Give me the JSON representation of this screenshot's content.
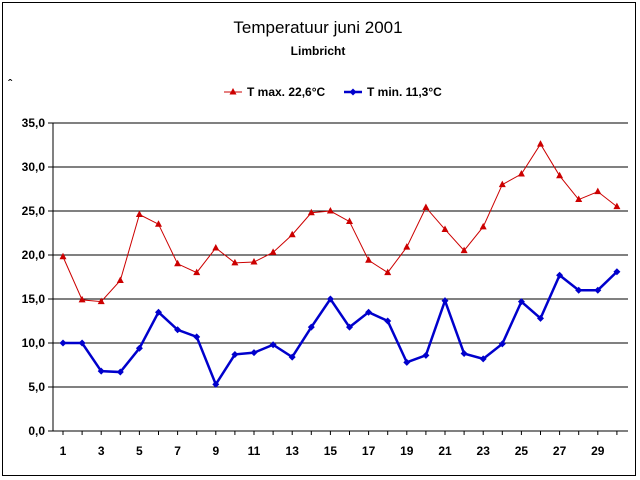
{
  "chart_data": {
    "type": "line",
    "title": "Temperatuur juni 2001",
    "subtitle": "Limbricht",
    "xlabel": "",
    "ylabel": "",
    "ylim": [
      0,
      35
    ],
    "yticks": [
      "0,0",
      "5,0",
      "10,0",
      "15,0",
      "20,0",
      "25,0",
      "30,0",
      "35,0"
    ],
    "x": [
      1,
      2,
      3,
      4,
      5,
      6,
      7,
      8,
      9,
      10,
      11,
      12,
      13,
      14,
      15,
      16,
      17,
      18,
      19,
      20,
      21,
      22,
      23,
      24,
      25,
      26,
      27,
      28,
      29,
      30
    ],
    "xticks": [
      "1",
      "3",
      "5",
      "7",
      "9",
      "11",
      "13",
      "15",
      "17",
      "19",
      "21",
      "23",
      "25",
      "27",
      "29"
    ],
    "grid": true,
    "legend_position": "top-center",
    "series": [
      {
        "name": "T max. 22,6°C",
        "color": "#cc0000",
        "marker": "triangle",
        "values": [
          19.8,
          14.9,
          14.7,
          17.1,
          24.6,
          23.5,
          19.0,
          18.0,
          20.8,
          19.1,
          19.2,
          20.3,
          22.3,
          24.8,
          25.0,
          23.8,
          19.4,
          18.0,
          20.9,
          25.4,
          22.9,
          20.5,
          23.2,
          28.0,
          29.2,
          32.6,
          29.0,
          26.3,
          27.2,
          25.5
        ]
      },
      {
        "name": "T min. 11,3°C",
        "color": "#0000cc",
        "marker": "diamond",
        "values": [
          10.0,
          10.0,
          6.8,
          6.7,
          9.4,
          13.5,
          11.5,
          10.7,
          5.3,
          8.7,
          8.9,
          9.8,
          8.4,
          11.8,
          15.0,
          11.8,
          13.5,
          12.5,
          7.8,
          8.6,
          14.8,
          8.8,
          8.2,
          9.9,
          14.7,
          12.8,
          17.7,
          16.0,
          16.0,
          18.1
        ]
      }
    ]
  },
  "stray_mark": "ˆ"
}
